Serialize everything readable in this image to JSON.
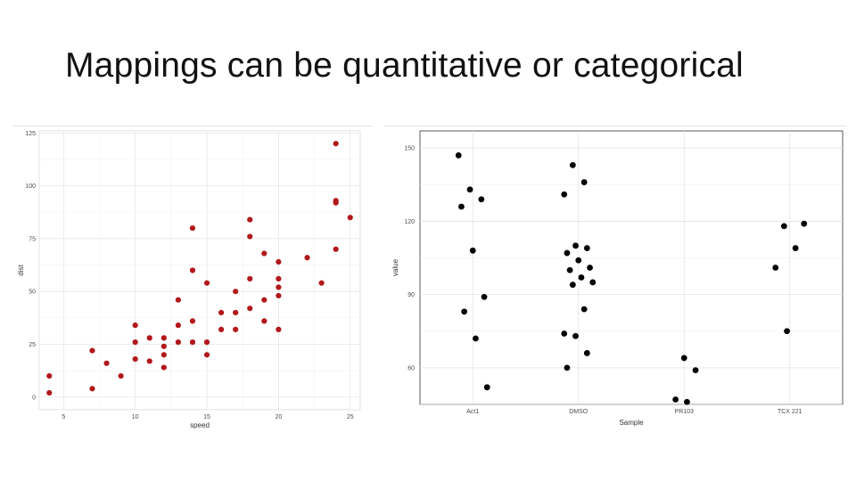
{
  "slide": {
    "title": "Mappings can be quantitative or categorical"
  },
  "chart_data": [
    {
      "type": "scatter",
      "title": "",
      "xlabel": "speed",
      "ylabel": "dist",
      "xlim": [
        3.3,
        25.7
      ],
      "ylim": [
        -6,
        126
      ],
      "x_ticks": [
        5,
        10,
        15,
        20,
        25
      ],
      "y_ticks": [
        0,
        25,
        50,
        75,
        100,
        125
      ],
      "grid": true,
      "point_color": "#b2181b",
      "series": [
        {
          "points": [
            [
              4,
              2
            ],
            [
              4,
              10
            ],
            [
              7,
              4
            ],
            [
              7,
              22
            ],
            [
              8,
              16
            ],
            [
              9,
              10
            ],
            [
              10,
              18
            ],
            [
              10,
              26
            ],
            [
              10,
              34
            ],
            [
              11,
              17
            ],
            [
              11,
              28
            ],
            [
              12,
              14
            ],
            [
              12,
              20
            ],
            [
              12,
              24
            ],
            [
              12,
              28
            ],
            [
              13,
              26
            ],
            [
              13,
              34
            ],
            [
              13,
              46
            ],
            [
              14,
              26
            ],
            [
              14,
              36
            ],
            [
              14,
              60
            ],
            [
              14,
              80
            ],
            [
              15,
              20
            ],
            [
              15,
              26
            ],
            [
              15,
              54
            ],
            [
              16,
              32
            ],
            [
              16,
              40
            ],
            [
              17,
              32
            ],
            [
              17,
              40
            ],
            [
              17,
              50
            ],
            [
              18,
              42
            ],
            [
              18,
              56
            ],
            [
              18,
              76
            ],
            [
              18,
              84
            ],
            [
              19,
              36
            ],
            [
              19,
              46
            ],
            [
              19,
              68
            ],
            [
              20,
              32
            ],
            [
              20,
              48
            ],
            [
              20,
              52
            ],
            [
              20,
              56
            ],
            [
              20,
              64
            ],
            [
              22,
              66
            ],
            [
              23,
              54
            ],
            [
              24,
              70
            ],
            [
              24,
              92
            ],
            [
              24,
              93
            ],
            [
              24,
              120
            ],
            [
              25,
              85
            ]
          ]
        }
      ]
    },
    {
      "type": "scatter",
      "title": "",
      "xlabel": "Sample",
      "ylabel": "value",
      "categories": [
        "Act1",
        "DMSO",
        "PR103",
        "TCX 221"
      ],
      "ylim": [
        45,
        157
      ],
      "y_ticks": [
        60,
        90,
        120,
        150
      ],
      "grid": true,
      "point_color": "#000000",
      "series": [
        {
          "points": [
            [
              "Act1",
              147
            ],
            [
              "Act1",
              133
            ],
            [
              "Act1",
              129
            ],
            [
              "Act1",
              126
            ],
            [
              "Act1",
              108
            ],
            [
              "Act1",
              89
            ],
            [
              "Act1",
              83
            ],
            [
              "Act1",
              72
            ],
            [
              "Act1",
              52
            ],
            [
              "DMSO",
              143
            ],
            [
              "DMSO",
              136
            ],
            [
              "DMSO",
              131
            ],
            [
              "DMSO",
              110
            ],
            [
              "DMSO",
              109
            ],
            [
              "DMSO",
              107
            ],
            [
              "DMSO",
              104
            ],
            [
              "DMSO",
              101
            ],
            [
              "DMSO",
              100
            ],
            [
              "DMSO",
              97
            ],
            [
              "DMSO",
              95
            ],
            [
              "DMSO",
              94
            ],
            [
              "DMSO",
              84
            ],
            [
              "DMSO",
              74
            ],
            [
              "DMSO",
              73
            ],
            [
              "DMSO",
              66
            ],
            [
              "DMSO",
              60
            ],
            [
              "PR103",
              64
            ],
            [
              "PR103",
              59
            ],
            [
              "PR103",
              47
            ],
            [
              "PR103",
              46
            ],
            [
              "TCX 221",
              119
            ],
            [
              "TCX 221",
              118
            ],
            [
              "TCX 221",
              109
            ],
            [
              "TCX 221",
              101
            ],
            [
              "TCX 221",
              75
            ]
          ]
        }
      ]
    }
  ]
}
